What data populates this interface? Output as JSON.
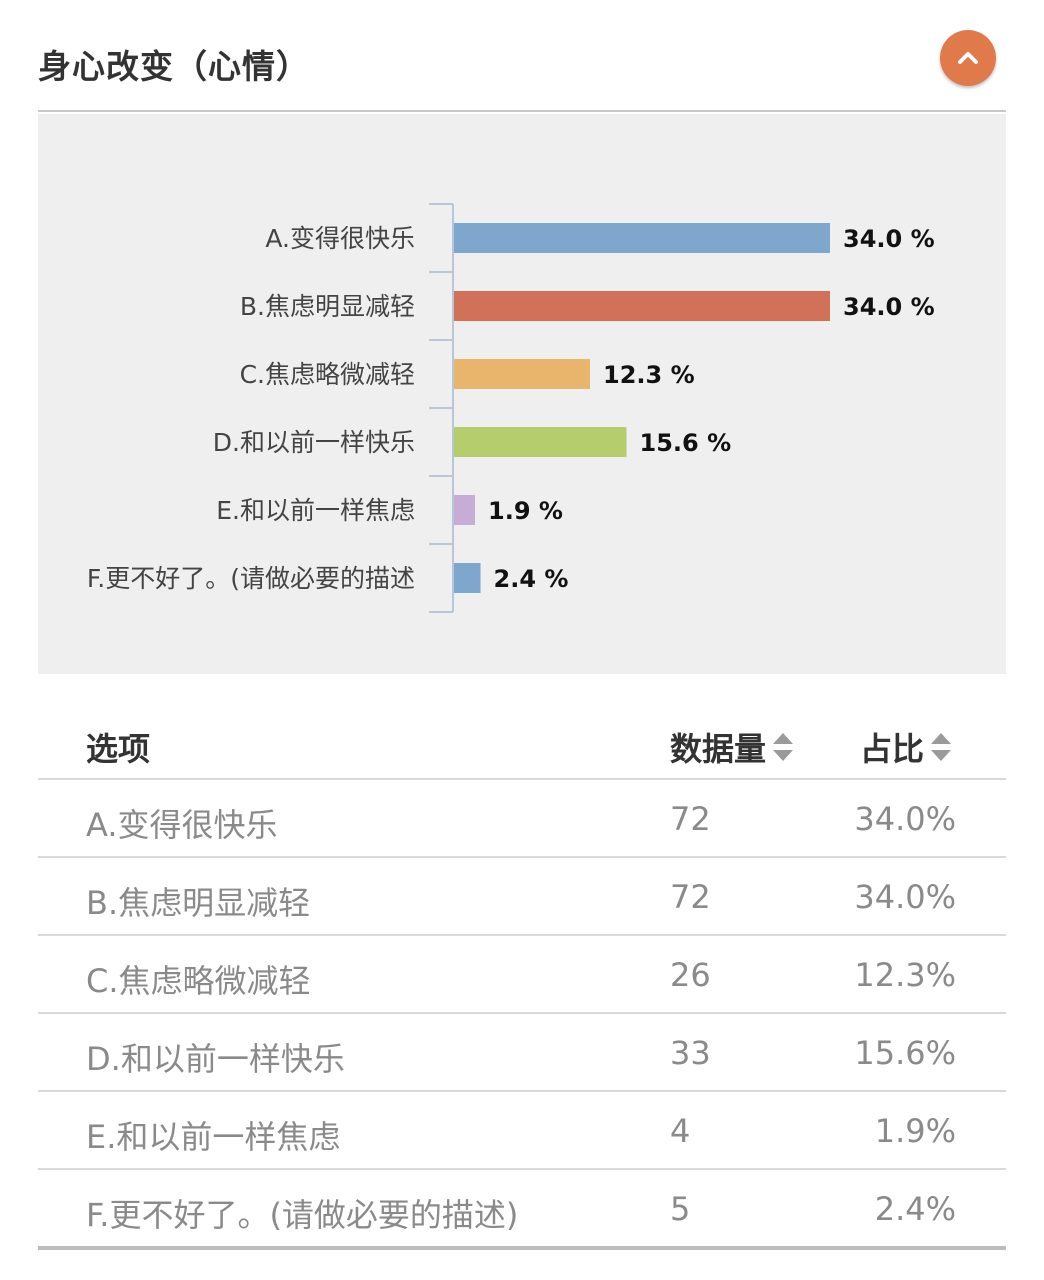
{
  "header": {
    "title": "身心改变（心情）",
    "collapse_icon": "chevron-up-icon",
    "accent_color": "#e07a4a"
  },
  "chart_data": {
    "type": "bar",
    "orientation": "horizontal",
    "categories": [
      "A.变得很快乐",
      "B.焦虑明显减轻",
      "C.焦虑略微减轻",
      "D.和以前一样快乐",
      "E.和以前一样焦虑",
      "F.更不好了。(请做必要的描述"
    ],
    "values": [
      34.0,
      34.0,
      12.3,
      15.6,
      1.9,
      2.4
    ],
    "value_labels": [
      "34.0 %",
      "34.0 %",
      "12.3 %",
      "15.6 %",
      "1.9 %",
      "2.4 %"
    ],
    "colors": [
      "#7fa6cc",
      "#d1715a",
      "#e9b46c",
      "#b6cd6d",
      "#c7acd6",
      "#7fa6cc"
    ],
    "xlim": [
      0,
      34.0
    ],
    "grid": false,
    "legend": "none"
  },
  "table": {
    "headers": {
      "option": "选项",
      "count": "数据量",
      "percent": "占比"
    },
    "rows": [
      {
        "option": "A.变得很快乐",
        "count": "72",
        "percent": "34.0%"
      },
      {
        "option": "B.焦虑明显减轻",
        "count": "72",
        "percent": "34.0%"
      },
      {
        "option": "C.焦虑略微减轻",
        "count": "26",
        "percent": "12.3%"
      },
      {
        "option": "D.和以前一样快乐",
        "count": "33",
        "percent": "15.6%"
      },
      {
        "option": "E.和以前一样焦虑",
        "count": "4",
        "percent": "1.9%"
      },
      {
        "option": "F.更不好了。(请做必要的描述)",
        "count": "5",
        "percent": "2.4%"
      }
    ]
  }
}
